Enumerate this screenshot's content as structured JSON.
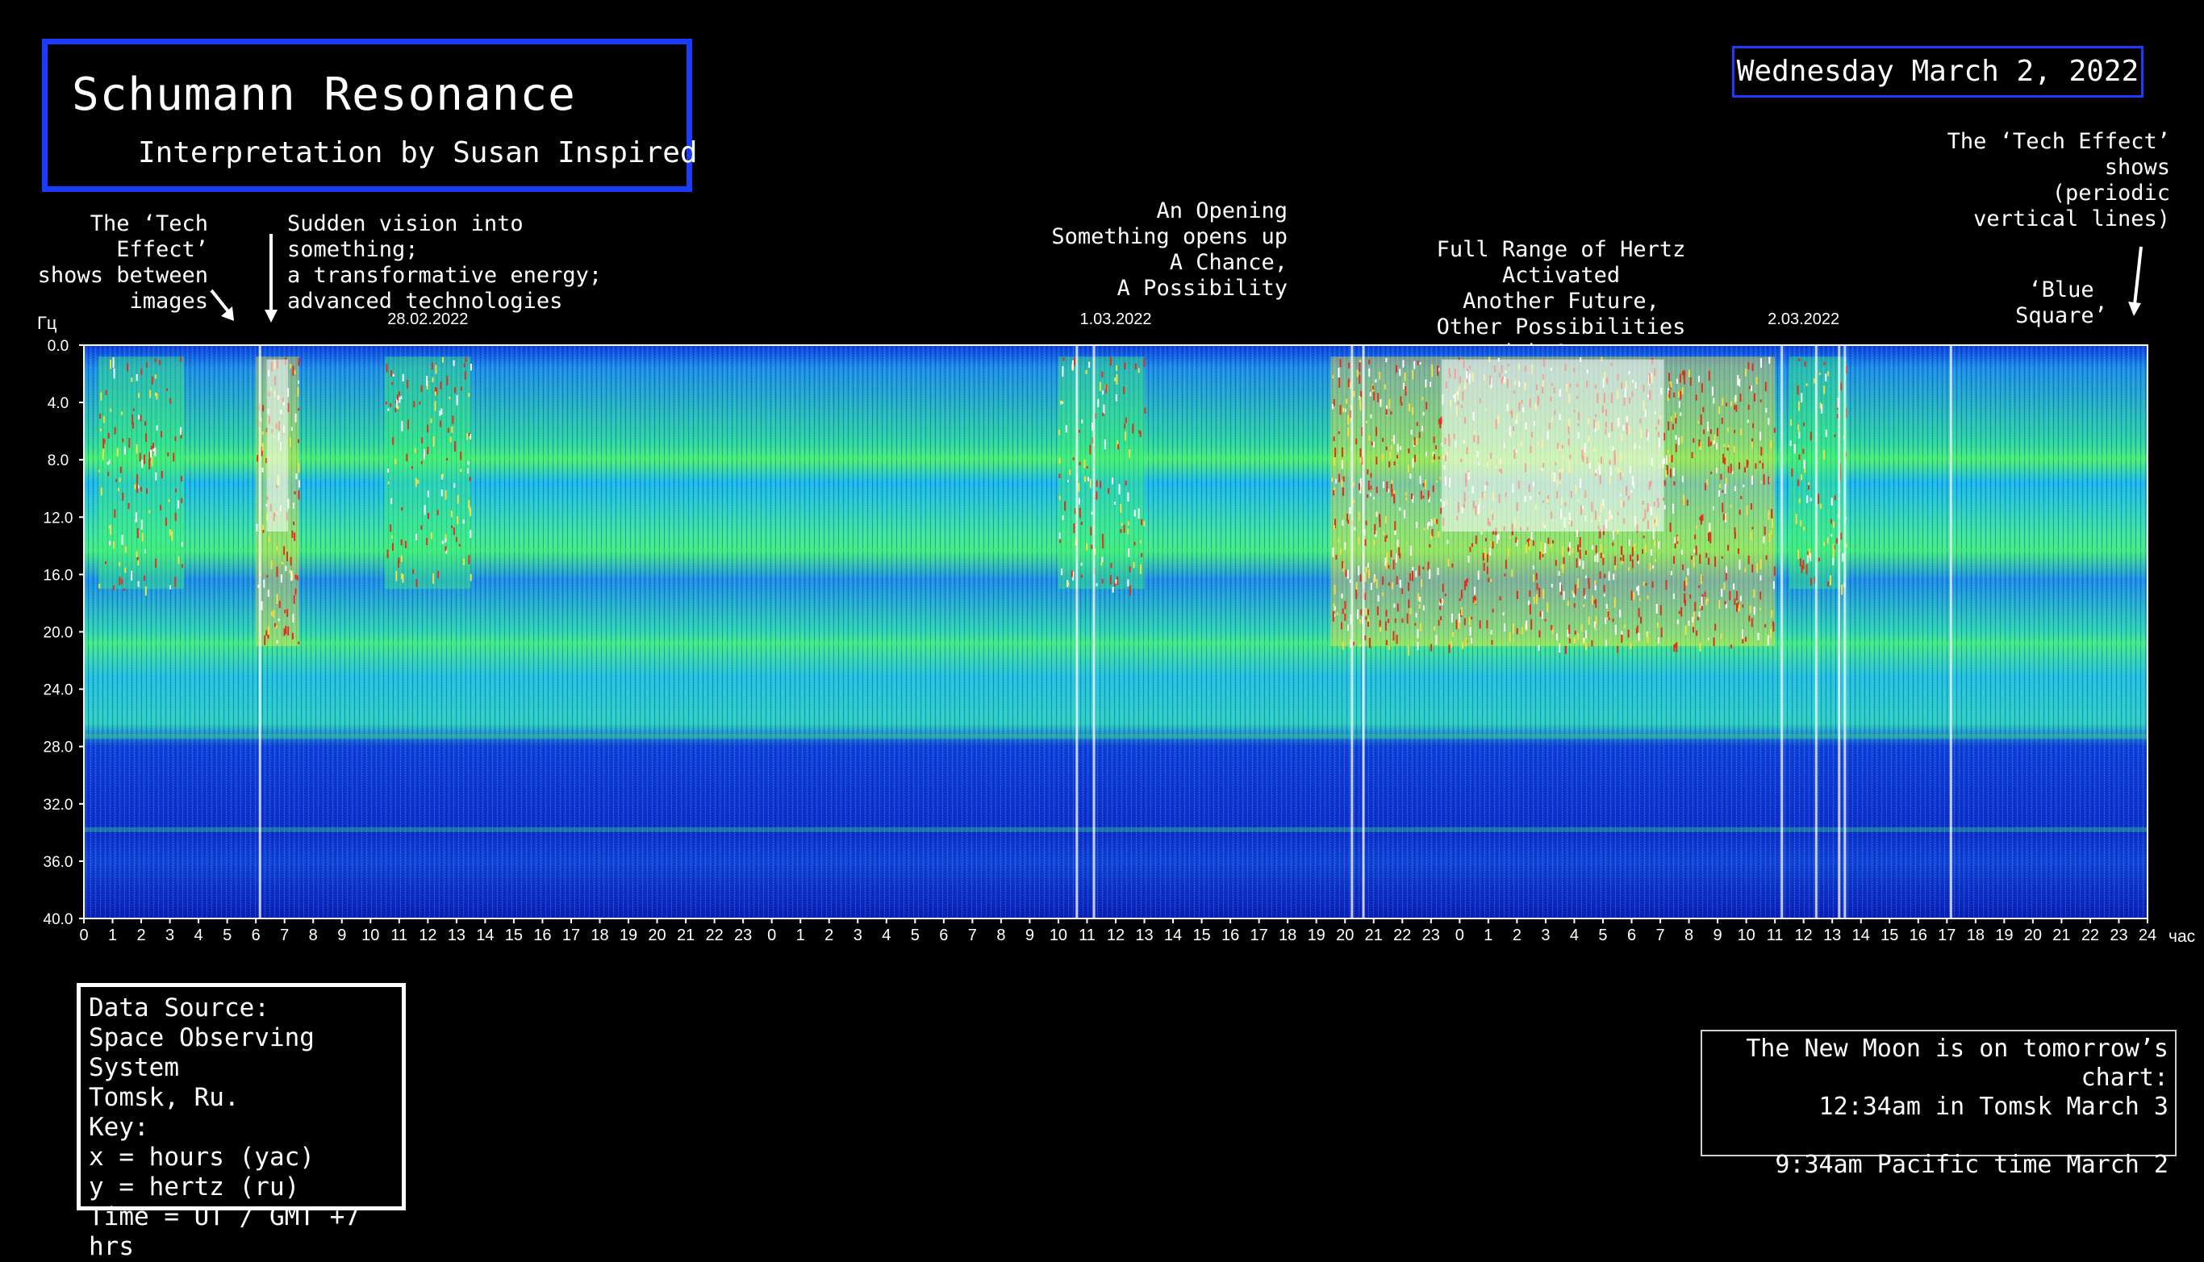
{
  "title": {
    "main": "Schumann Resonance",
    "sub": "Interpretation by Susan Inspired"
  },
  "date_badge": "Wednesday March 2, 2022",
  "annotations": {
    "tech_effect_left": "The ‘Tech Effect’\nshows between\nimages",
    "sudden_vision": "Sudden vision into something;\na transformative energy;\nadvanced technologies",
    "opening": "An Opening\nSomething opens up\nA Chance,\nA Possibility",
    "full_range": "Full Range of Hertz Activated\nAnother Future,\nOther Possibilities\n...with Awareness",
    "tech_effect_right": "The ‘Tech Effect’\nshows\n(periodic\nvertical lines)",
    "blue_square": "‘Blue\nSquare’"
  },
  "legend": {
    "line1": "Data Source:",
    "line2": "Space Observing System",
    "line3": "Tomsk, Ru.",
    "line4": "Key:",
    "line5": "x = hours (yac)",
    "line6": "y = hertz (ru)",
    "line7": "Time = UT / GMT +7 hrs"
  },
  "moon_note": {
    "line1": "The New Moon is on tomorrow’s chart:",
    "line2": "12:34am in Tomsk March 3",
    "line3": "9:34am Pacific time March 2"
  },
  "chart_data": {
    "type": "heatmap",
    "title": "Schumann Resonance",
    "y_unit": "Гц",
    "x_unit": "час",
    "ylim": [
      0,
      40
    ],
    "y_ticks": [
      "0.0",
      "4.0",
      "8.0",
      "12.0",
      "16.0",
      "20.0",
      "24.0",
      "28.0",
      "32.0",
      "36.0",
      "40.0"
    ],
    "x_ticks": [
      "0",
      "1",
      "2",
      "3",
      "4",
      "5",
      "6",
      "7",
      "8",
      "9",
      "10",
      "11",
      "12",
      "13",
      "14",
      "15",
      "16",
      "17",
      "18",
      "19",
      "20",
      "21",
      "22",
      "23",
      "0",
      "1",
      "2",
      "3",
      "4",
      "5",
      "6",
      "7",
      "8",
      "9",
      "10",
      "11",
      "12",
      "13",
      "14",
      "15",
      "16",
      "17",
      "18",
      "19",
      "20",
      "21",
      "22",
      "23",
      "0",
      "1",
      "2",
      "3",
      "4",
      "5",
      "6",
      "7",
      "8",
      "9",
      "10",
      "11",
      "12",
      "13",
      "14",
      "15",
      "16",
      "17",
      "18",
      "19",
      "20",
      "21",
      "22",
      "23",
      "24"
    ],
    "day_labels": [
      {
        "label": "28.02.2022",
        "hour": 12
      },
      {
        "label": "1.03.2022",
        "hour": 36
      },
      {
        "label": "2.03.2022",
        "hour": 60
      }
    ],
    "colors": {
      "low": "#0a1fd0",
      "mid": "#22d0d8",
      "band": "#3ff07a",
      "high": "#f2e040",
      "peak": "#e0301a",
      "max": "#ffffff"
    },
    "resonance_bands_hz": [
      7.8,
      14.3,
      20.8,
      27.3,
      33.8
    ],
    "bursts": [
      {
        "start_hour": 0.5,
        "end_hour": 3.5,
        "intensity": "high"
      },
      {
        "start_hour": 6,
        "end_hour": 7.5,
        "intensity": "max"
      },
      {
        "start_hour": 10.5,
        "end_hour": 13.5,
        "intensity": "high"
      },
      {
        "start_hour": 34,
        "end_hour": 37,
        "intensity": "high"
      },
      {
        "start_hour": 43.5,
        "end_hour": 59,
        "intensity": "max"
      },
      {
        "start_hour": 59.5,
        "end_hour": 61.5,
        "intensity": "high"
      }
    ]
  }
}
